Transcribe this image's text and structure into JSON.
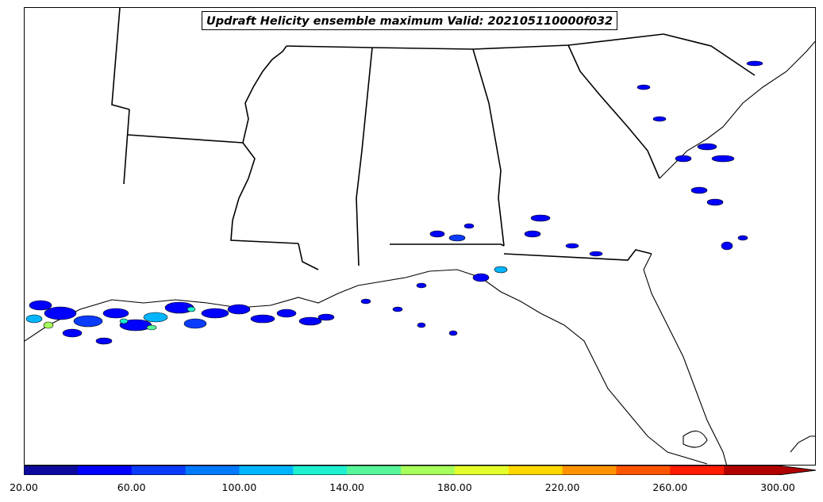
{
  "title": "Updraft Helicity ensemble maximum Valid: 202105110000f032",
  "colorbar": {
    "colors": [
      "#0c0a9e",
      "#0000ff",
      "#0a3cff",
      "#007aff",
      "#00b5ff",
      "#1ef0d0",
      "#57f69a",
      "#a6ff5a",
      "#e5ff2a",
      "#ffd700",
      "#ff9200",
      "#ff5500",
      "#ff1a00",
      "#b10000"
    ],
    "tick_labels": [
      "20.00",
      "60.00",
      "100.00",
      "140.00",
      "180.00",
      "220.00",
      "260.00",
      "300.00"
    ],
    "min": 20,
    "max": 300,
    "step": 20,
    "extend": "max"
  }
}
